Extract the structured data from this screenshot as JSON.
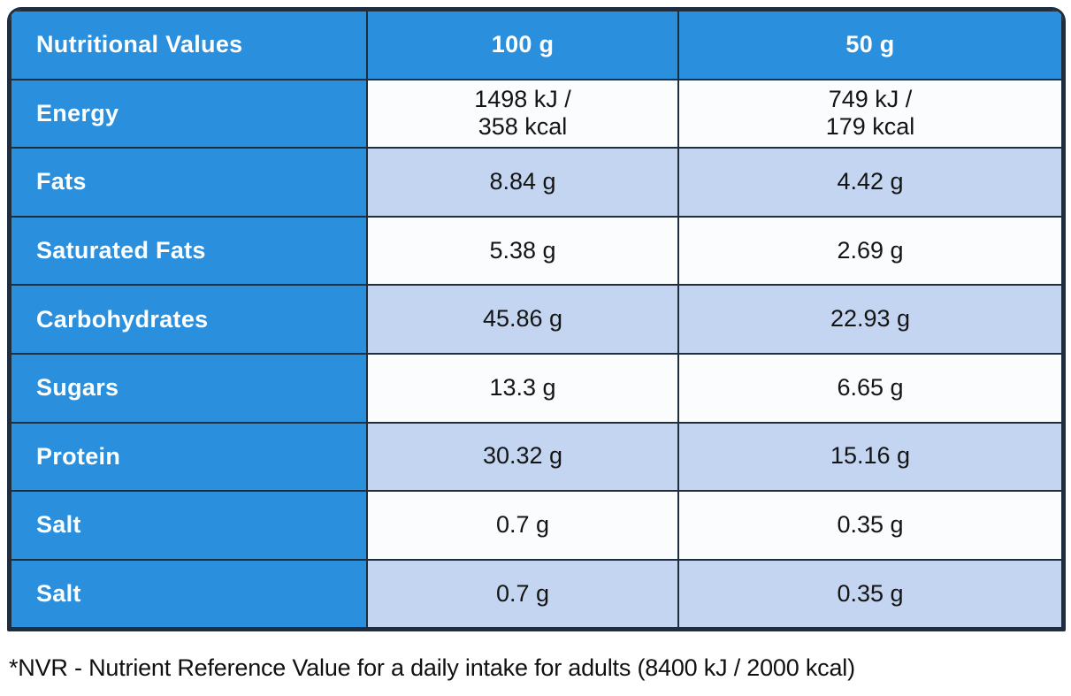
{
  "table": {
    "header": {
      "title": "Nutritional Values",
      "col_100g": "100 g",
      "col_50g": "50 g"
    },
    "rows": [
      {
        "label": "Energy",
        "per100": "1498 kJ /\n358 kcal",
        "per50": "749 kJ /\n179 kcal"
      },
      {
        "label": "Fats",
        "per100": "8.84 g",
        "per50": "4.42 g"
      },
      {
        "label": "Saturated Fats",
        "per100": "5.38 g",
        "per50": "2.69 g"
      },
      {
        "label": "Carbohydrates",
        "per100": "45.86 g",
        "per50": "22.93 g"
      },
      {
        "label": "Sugars",
        "per100": "13.3 g",
        "per50": "6.65 g"
      },
      {
        "label": "Protein",
        "per100": "30.32 g",
        "per50": "15.16 g"
      },
      {
        "label": "Salt",
        "per100": "0.7 g",
        "per50": "0.35 g"
      },
      {
        "label": "Salt",
        "per100": "0.7 g",
        "per50": "0.35 g"
      }
    ],
    "footnote": "*NVR - Nutrient Reference Value for a daily intake for adults (8400 kJ / 2000 kcal)"
  },
  "colors": {
    "blue": "#2A90DE",
    "light_blue": "#C3D5F0",
    "row_white": "#FBFCFE",
    "border": "#1E2E3E",
    "label_text": "#FFFFFF",
    "value_text": "#141414",
    "footnote_text": "#101010"
  }
}
